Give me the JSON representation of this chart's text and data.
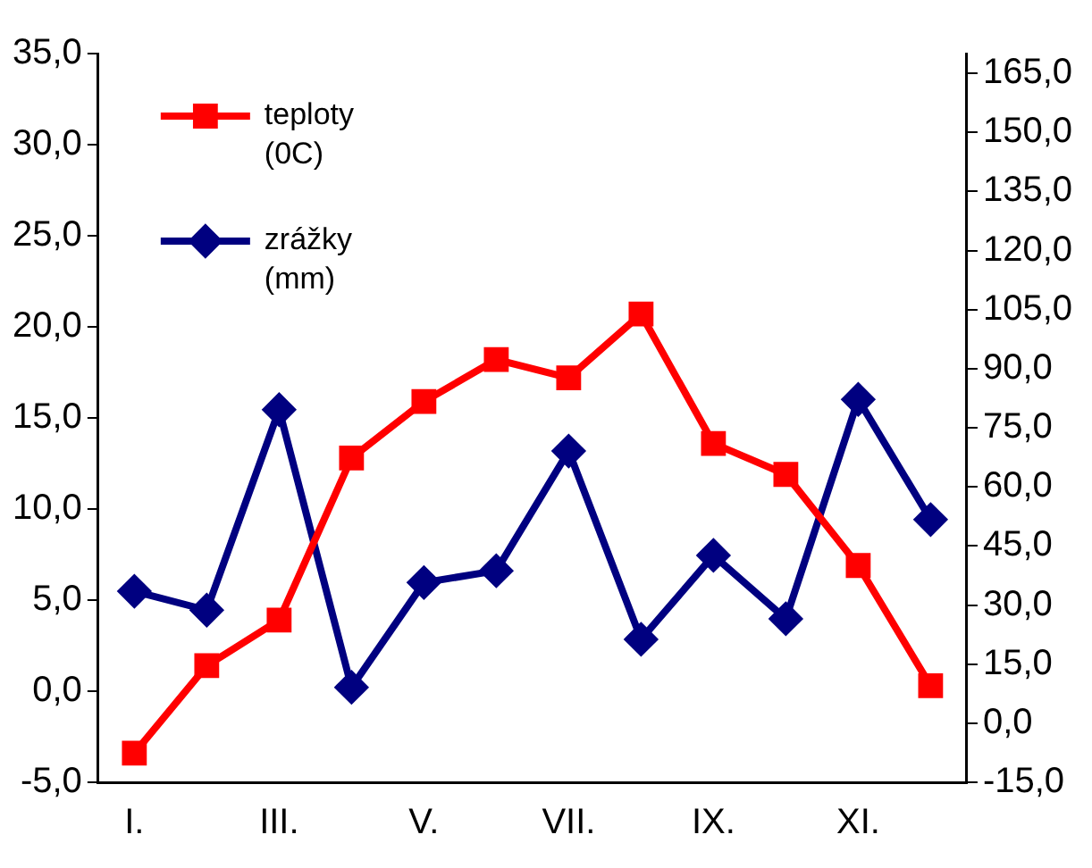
{
  "chart_data": {
    "type": "line",
    "categories": [
      "I.",
      null,
      "III.",
      null,
      "V.",
      null,
      "VII.",
      null,
      "IX.",
      null,
      "XI.",
      null
    ],
    "series": [
      {
        "name": "teploty (0C)",
        "color": "#ff0000",
        "marker": "square",
        "values": [
          -3.4,
          1.4,
          3.9,
          12.8,
          15.9,
          18.2,
          17.2,
          20.7,
          13.6,
          11.9,
          6.9,
          0.3
        ]
      },
      {
        "name": "zrážky (mm)",
        "color": "#000080",
        "marker": "diamond",
        "axis": "y2",
        "values": [
          33.5,
          28.7,
          79.6,
          9.1,
          35.7,
          38.7,
          69.1,
          21.3,
          42.6,
          26.5,
          82.2,
          51.7
        ]
      }
    ],
    "ylim": [
      -5,
      35
    ],
    "yticks": [
      {
        "value": -5,
        "label": "-5,0"
      },
      {
        "value": 0,
        "label": "0,0"
      },
      {
        "value": 5,
        "label": "5,0"
      },
      {
        "value": 10,
        "label": "10,0"
      },
      {
        "value": 15,
        "label": "15,0"
      },
      {
        "value": 20,
        "label": "20,0"
      },
      {
        "value": 25,
        "label": "25,0"
      },
      {
        "value": 30,
        "label": "30,0"
      },
      {
        "value": 35,
        "label": "35,0"
      }
    ],
    "y2lim": [
      -15,
      170
    ],
    "y2ticks": [
      {
        "value": -15,
        "label": "-15,0"
      },
      {
        "value": 0,
        "label": "0,0"
      },
      {
        "value": 15,
        "label": "15,0"
      },
      {
        "value": 30,
        "label": "30,0"
      },
      {
        "value": 45,
        "label": "45,0"
      },
      {
        "value": 60,
        "label": "60,0"
      },
      {
        "value": 75,
        "label": "75,0"
      },
      {
        "value": 90,
        "label": "90,0"
      },
      {
        "value": 105,
        "label": "105,0"
      },
      {
        "value": 120,
        "label": "120,0"
      },
      {
        "value": 135,
        "label": "135,0"
      },
      {
        "value": 150,
        "label": "150,0"
      },
      {
        "value": 165,
        "label": "165,0"
      }
    ],
    "grid": false,
    "legend": "top left",
    "line_style": "solid"
  }
}
